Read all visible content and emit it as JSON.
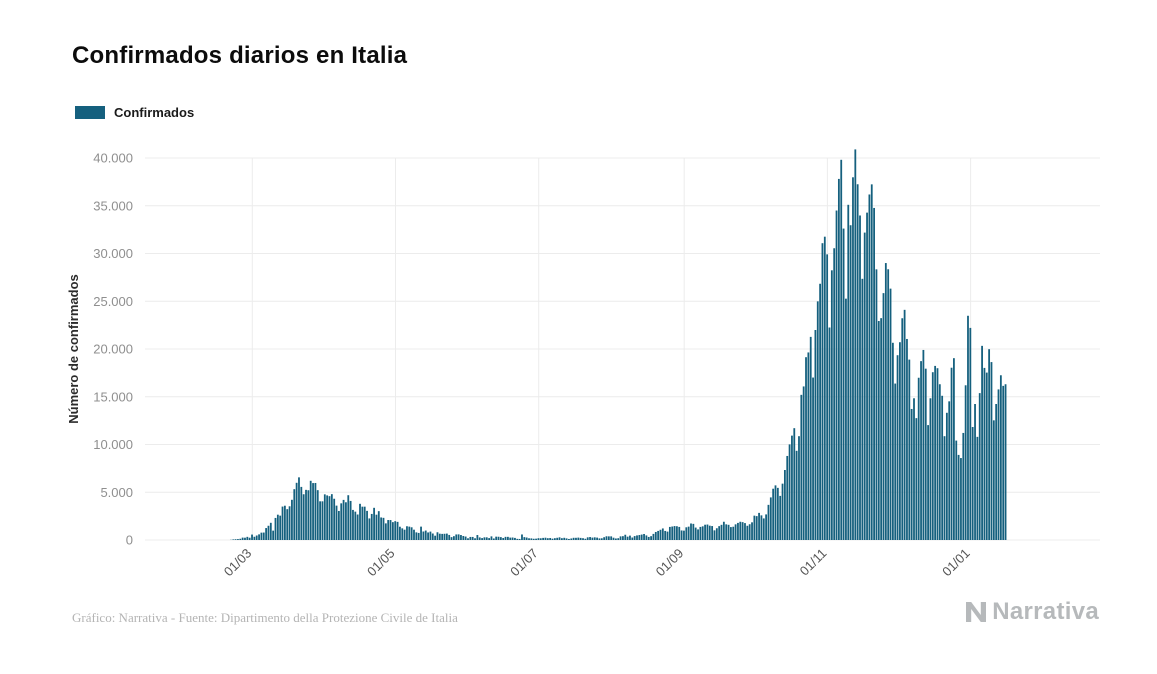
{
  "title": "Confirmados diarios en Italia",
  "legend": {
    "label": "Confirmados",
    "color": "#15607e"
  },
  "footer": {
    "caption": "Gráfico: Narrativa - Fuente: Dipartimento della Protezione Civile de Italia",
    "brand": "Narrativa"
  },
  "chart_data": {
    "type": "bar",
    "title": "Confirmados diarios en Italia",
    "xlabel": "",
    "ylabel": "Número de confirmados",
    "ylim": [
      0,
      40000
    ],
    "grid": true,
    "legend_position": "top-left",
    "x_unit": "day",
    "x_start": "21/02",
    "x_end": "16/01",
    "y_ticks": [
      {
        "value": 0,
        "label": "0"
      },
      {
        "value": 5000,
        "label": "5.000"
      },
      {
        "value": 10000,
        "label": "10.000"
      },
      {
        "value": 15000,
        "label": "15.000"
      },
      {
        "value": 20000,
        "label": "20.000"
      },
      {
        "value": 25000,
        "label": "25.000"
      },
      {
        "value": 30000,
        "label": "30.000"
      },
      {
        "value": 35000,
        "label": "35.000"
      },
      {
        "value": 40000,
        "label": "40.000"
      }
    ],
    "x_ticks": [
      {
        "index": 9,
        "label": "01/03"
      },
      {
        "index": 70,
        "label": "01/05"
      },
      {
        "index": 131,
        "label": "01/07"
      },
      {
        "index": 193,
        "label": "01/09"
      },
      {
        "index": 254,
        "label": "01/11"
      },
      {
        "index": 315,
        "label": "01/01"
      }
    ],
    "series": [
      {
        "name": "Confirmados",
        "color": "#15607e",
        "values": [
          20,
          60,
          80,
          95,
          130,
          250,
          240,
          330,
          240,
          570,
          340,
          470,
          590,
          770,
          780,
          1250,
          1490,
          1800,
          980,
          2310,
          2650,
          2550,
          3500,
          3590,
          3230,
          3530,
          4210,
          5320,
          5990,
          6560,
          5560,
          4790,
          5250,
          5210,
          6200,
          5960,
          5970,
          5220,
          4050,
          4050,
          4780,
          4670,
          4590,
          4800,
          4320,
          3600,
          3040,
          3840,
          4200,
          3950,
          4690,
          4090,
          3150,
          2970,
          2670,
          3790,
          3490,
          3490,
          3050,
          2260,
          2730,
          3370,
          2650,
          3020,
          2360,
          2320,
          1740,
          2090,
          2090,
          1870,
          1970,
          1900,
          1390,
          1220,
          1080,
          1440,
          1400,
          1330,
          1080,
          800,
          740,
          1400,
          890,
          990,
          790,
          880,
          680,
          450,
          810,
          660,
          640,
          650,
          670,
          530,
          300,
          400,
          580,
          590,
          520,
          420,
          360,
          180,
          320,
          320,
          180,
          520,
          270,
          200,
          280,
          280,
          200,
          380,
          160,
          350,
          340,
          300,
          210,
          330,
          330,
          250,
          260,
          220,
          120,
          110,
          580,
          300,
          260,
          180,
          170,
          130,
          140,
          190,
          180,
          220,
          240,
          190,
          210,
          140,
          190,
          230,
          280,
          190,
          230,
          170,
          110,
          160,
          230,
          230,
          250,
          220,
          190,
          130,
          280,
          310,
          250,
          280,
          250,
          170,
          180,
          290,
          390,
          380,
          380,
          240,
          160,
          190,
          380,
          400,
          550,
          350,
          460,
          260,
          410,
          480,
          520,
          570,
          630,
          480,
          320,
          400,
          640,
          840,
          950,
          1070,
          1210,
          950,
          880,
          1370,
          1410,
          1460,
          1440,
          1370,
          1000,
          980,
          1330,
          1400,
          1730,
          1690,
          1300,
          1110,
          1370,
          1430,
          1600,
          1620,
          1500,
          1460,
          1010,
          1230,
          1450,
          1590,
          1910,
          1640,
          1590,
          1350,
          1390,
          1640,
          1790,
          1910,
          1870,
          1770,
          1490,
          1650,
          1850,
          2550,
          2500,
          2840,
          2580,
          2260,
          2680,
          3680,
          4460,
          5370,
          5720,
          5460,
          4620,
          5900,
          7330,
          8800,
          10010,
          10930,
          11710,
          9340,
          10870,
          15200,
          16080,
          19140,
          19640,
          21270,
          17010,
          21990,
          24990,
          26830,
          31080,
          31760,
          29910,
          22250,
          28240,
          30550,
          34500,
          37810,
          39810,
          32610,
          25270,
          35100,
          32960,
          37980,
          40900,
          37250,
          33980,
          27350,
          32190,
          34280,
          36180,
          37240,
          34770,
          28340,
          22930,
          23230,
          25850,
          29000,
          28350,
          26320,
          20650,
          16380,
          19350,
          20710,
          23220,
          24100,
          21050,
          18890,
          13720,
          14840,
          12760,
          16990,
          18730,
          19900,
          17940,
          12030,
          14840,
          17570,
          18230,
          17990,
          16310,
          15100,
          10870,
          13320,
          14520,
          18040,
          19040,
          10410,
          8910,
          8580,
          11210,
          16200,
          23480,
          22210,
          11830,
          14240,
          10800,
          15380,
          20330,
          18020,
          17530,
          19980,
          18630,
          12530,
          14240,
          15770,
          17250,
          16140,
          16310
        ]
      }
    ]
  }
}
